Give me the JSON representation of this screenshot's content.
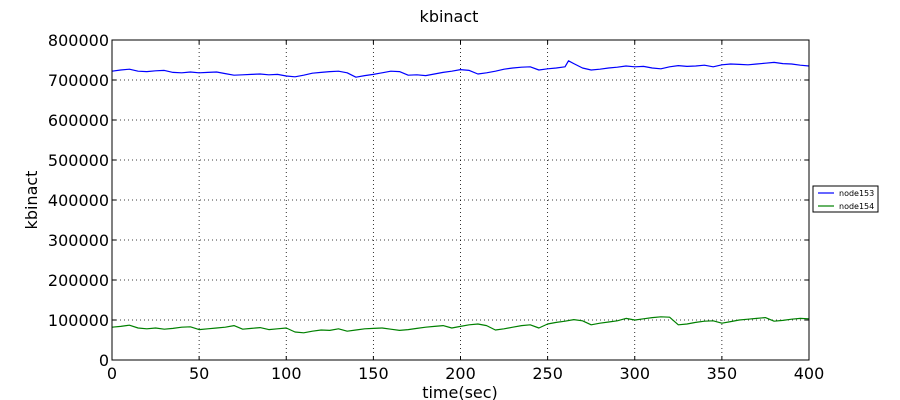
{
  "chart_data": {
    "type": "line",
    "title": "kbinact",
    "xlabel": "time(sec)",
    "ylabel": "kbinact",
    "xlim": [
      0,
      400
    ],
    "ylim": [
      0,
      800000
    ],
    "xticks": [
      0,
      50,
      100,
      150,
      200,
      250,
      300,
      350,
      400
    ],
    "yticks": [
      0,
      100000,
      200000,
      300000,
      400000,
      500000,
      600000,
      700000,
      800000
    ],
    "grid": true,
    "legend_position": "right",
    "series": [
      {
        "name": "node153",
        "color": "#0000ff",
        "x": [
          0,
          5,
          10,
          15,
          20,
          25,
          30,
          35,
          40,
          45,
          50,
          55,
          60,
          65,
          70,
          75,
          80,
          85,
          90,
          95,
          100,
          105,
          110,
          115,
          120,
          125,
          130,
          135,
          140,
          145,
          150,
          155,
          160,
          165,
          170,
          175,
          180,
          185,
          190,
          195,
          200,
          205,
          210,
          215,
          220,
          225,
          230,
          235,
          240,
          245,
          250,
          255,
          260,
          262,
          265,
          270,
          275,
          280,
          285,
          290,
          295,
          300,
          305,
          310,
          315,
          320,
          325,
          330,
          335,
          340,
          345,
          350,
          355,
          360,
          365,
          370,
          375,
          380,
          385,
          390,
          395,
          400
        ],
        "y": [
          722000,
          725000,
          727000,
          722000,
          721000,
          723000,
          724000,
          719000,
          718000,
          720000,
          718000,
          719000,
          720000,
          716000,
          712000,
          713000,
          714000,
          715000,
          713000,
          714000,
          710000,
          708000,
          712000,
          717000,
          719000,
          721000,
          722000,
          718000,
          707000,
          711000,
          714000,
          718000,
          722000,
          721000,
          712000,
          713000,
          711000,
          715000,
          719000,
          722000,
          726000,
          724000,
          715000,
          718000,
          722000,
          727000,
          730000,
          732000,
          733000,
          725000,
          728000,
          730000,
          733000,
          748000,
          741000,
          730000,
          725000,
          727000,
          730000,
          732000,
          735000,
          733000,
          734000,
          730000,
          728000,
          733000,
          736000,
          734000,
          735000,
          737000,
          733000,
          738000,
          740000,
          739000,
          738000,
          740000,
          742000,
          744000,
          741000,
          740000,
          737000,
          735000
        ]
      },
      {
        "name": "node154",
        "color": "#008000",
        "x": [
          0,
          5,
          10,
          15,
          20,
          25,
          30,
          35,
          40,
          45,
          50,
          55,
          60,
          65,
          70,
          75,
          80,
          85,
          90,
          95,
          100,
          105,
          110,
          115,
          120,
          125,
          130,
          135,
          140,
          145,
          150,
          155,
          160,
          165,
          170,
          175,
          180,
          185,
          190,
          195,
          200,
          205,
          210,
          215,
          220,
          225,
          230,
          235,
          240,
          245,
          250,
          255,
          260,
          265,
          270,
          275,
          280,
          285,
          290,
          295,
          300,
          305,
          310,
          315,
          320,
          325,
          330,
          335,
          340,
          345,
          350,
          355,
          360,
          365,
          370,
          375,
          380,
          385,
          390,
          395,
          400
        ],
        "y": [
          82000,
          84000,
          87000,
          80000,
          78000,
          80000,
          77000,
          79000,
          82000,
          83000,
          76000,
          78000,
          80000,
          82000,
          86000,
          77000,
          79000,
          81000,
          76000,
          78000,
          80000,
          70000,
          68000,
          72000,
          75000,
          74000,
          78000,
          72000,
          75000,
          78000,
          79000,
          80000,
          77000,
          74000,
          76000,
          79000,
          82000,
          84000,
          86000,
          80000,
          84000,
          88000,
          90000,
          86000,
          75000,
          78000,
          82000,
          86000,
          88000,
          80000,
          90000,
          94000,
          97000,
          101000,
          98000,
          88000,
          92000,
          95000,
          98000,
          104000,
          100000,
          103000,
          106000,
          108000,
          107000,
          88000,
          90000,
          94000,
          97000,
          98000,
          92000,
          96000,
          100000,
          102000,
          104000,
          106000,
          97000,
          99000,
          102000,
          104000,
          103000
        ]
      }
    ]
  }
}
